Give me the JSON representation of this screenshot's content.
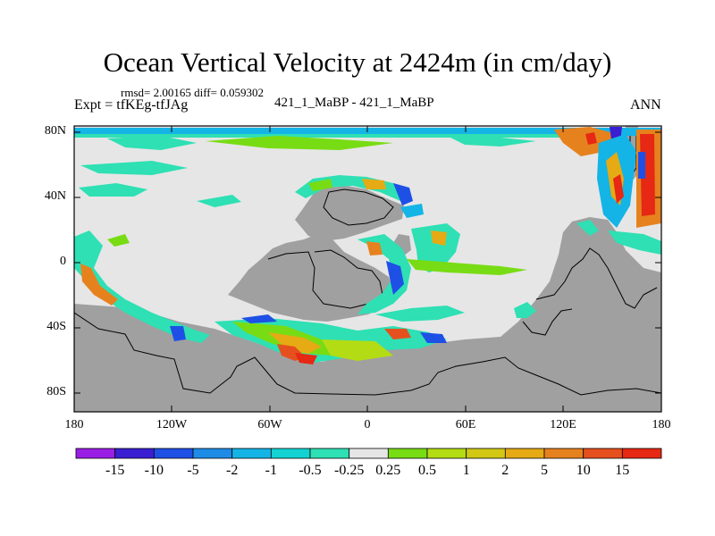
{
  "title": "Ocean Vertical Velocity at 2424m (in cm/day)",
  "stats_line": "rmsd= 2.00165 diff= 0.059302",
  "experiment": "Expt = tfKEg-tfJAg",
  "runs": "421_1_MaBP - 421_1_MaBP",
  "season": "ANN",
  "axes": {
    "y_ticks": [
      "80N",
      "40N",
      "0",
      "40S",
      "80S"
    ],
    "x_ticks": [
      "180",
      "120W",
      "60W",
      "0",
      "60E",
      "120E",
      "180"
    ]
  },
  "colors": {
    "land": "#a0a0a0",
    "near_zero": "#e6e6e6",
    "background": "#ffffff"
  },
  "colorbar": {
    "colors": [
      "#9a1ee6",
      "#3a1ed2",
      "#1e50e6",
      "#1e8ce6",
      "#14b4e6",
      "#14d2d2",
      "#2ee0b4",
      "#e6e6e6",
      "#78dc14",
      "#b4dc14",
      "#d2c814",
      "#e6aa14",
      "#e6821e",
      "#e6501e",
      "#e62814"
    ],
    "labels": [
      "-15",
      "-10",
      "-5",
      "-2",
      "-1",
      "-0.5",
      "-0.25",
      "0.25",
      "0.5",
      "1",
      "2",
      "5",
      "10",
      "15"
    ]
  }
}
